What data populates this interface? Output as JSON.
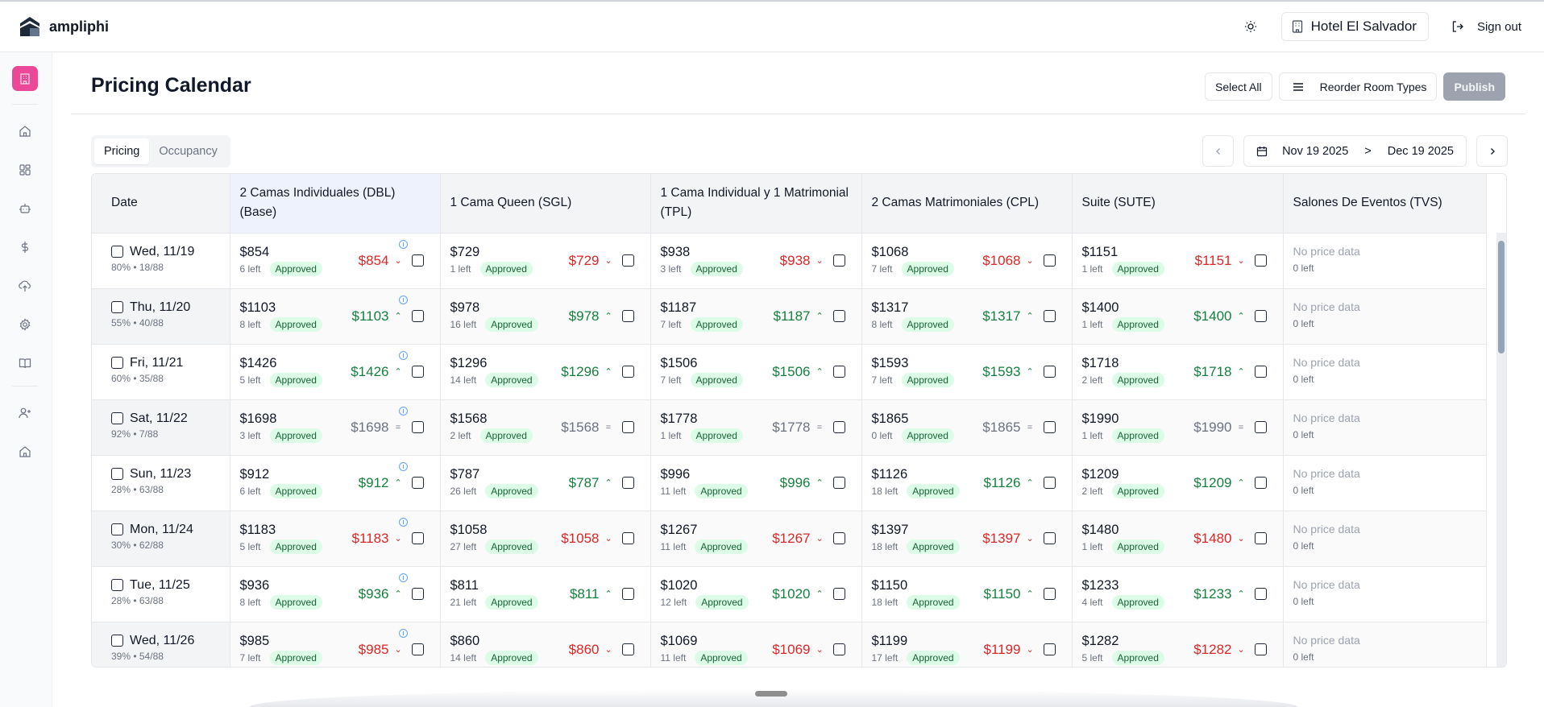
{
  "app": {
    "name": "ampliphi"
  },
  "header": {
    "hotel_label": "Hotel El Salvador",
    "signout_label": "Sign out",
    "theme_icon": "sun-icon"
  },
  "sidebar": {
    "items": [
      {
        "name": "hotel",
        "icon": "building-icon",
        "active": true
      },
      {
        "name": "home",
        "icon": "home-icon"
      },
      {
        "name": "dashboard",
        "icon": "grid-icon"
      },
      {
        "name": "bot",
        "icon": "bot-icon"
      },
      {
        "name": "pricing",
        "icon": "dollar-icon"
      },
      {
        "name": "upload",
        "icon": "cloud-upload-icon"
      },
      {
        "name": "settings",
        "icon": "gear-icon"
      },
      {
        "name": "docs",
        "icon": "book-icon"
      },
      {
        "name": "add-user",
        "icon": "user-plus-icon"
      },
      {
        "name": "home-2",
        "icon": "home-icon"
      }
    ]
  },
  "page": {
    "title": "Pricing Calendar",
    "select_all_label": "Select All",
    "reorder_label": "Reorder Room Types",
    "publish_label": "Publish",
    "tabs": [
      {
        "label": "Pricing",
        "active": true
      },
      {
        "label": "Occupancy",
        "active": false
      }
    ],
    "date_range": {
      "start": "Nov 19 2025",
      "separator": ">",
      "end": "Dec 19 2025"
    }
  },
  "table": {
    "date_header": "Date",
    "room_types": [
      "2 Camas Individuales (DBL) (Base)",
      "1 Cama Queen (SGL)",
      "1 Cama Individual y 1 Matrimonial (TPL)",
      "2 Camas Matrimoniales (CPL)",
      "Suite (SUTE)",
      "Salones De Eventos (TVS)"
    ],
    "status_label": "Approved",
    "no_data_label": "No price data",
    "no_data_left": "0 left",
    "rows": [
      {
        "date": "Wed, 11/19",
        "occ": "80% • 18/88",
        "trend": "down",
        "cells": [
          {
            "price": "$854",
            "left": "6 left",
            "rec": "$854"
          },
          {
            "price": "$729",
            "left": "1 left",
            "rec": "$729"
          },
          {
            "price": "$938",
            "left": "3 left",
            "rec": "$938"
          },
          {
            "price": "$1068",
            "left": "7 left",
            "rec": "$1068"
          },
          {
            "price": "$1151",
            "left": "1 left",
            "rec": "$1151"
          }
        ]
      },
      {
        "date": "Thu, 11/20",
        "occ": "55% • 40/88",
        "trend": "up",
        "cells": [
          {
            "price": "$1103",
            "left": "8 left",
            "rec": "$1103"
          },
          {
            "price": "$978",
            "left": "16 left",
            "rec": "$978"
          },
          {
            "price": "$1187",
            "left": "7 left",
            "rec": "$1187"
          },
          {
            "price": "$1317",
            "left": "8 left",
            "rec": "$1317"
          },
          {
            "price": "$1400",
            "left": "1 left",
            "rec": "$1400"
          }
        ]
      },
      {
        "date": "Fri, 11/21",
        "occ": "60% • 35/88",
        "trend": "up",
        "cells": [
          {
            "price": "$1426",
            "left": "5 left",
            "rec": "$1426"
          },
          {
            "price": "$1296",
            "left": "14 left",
            "rec": "$1296"
          },
          {
            "price": "$1506",
            "left": "7 left",
            "rec": "$1506"
          },
          {
            "price": "$1593",
            "left": "7 left",
            "rec": "$1593"
          },
          {
            "price": "$1718",
            "left": "2 left",
            "rec": "$1718"
          }
        ]
      },
      {
        "date": "Sat, 11/22",
        "occ": "92% • 7/88",
        "trend": "flat",
        "cells": [
          {
            "price": "$1698",
            "left": "3 left",
            "rec": "$1698"
          },
          {
            "price": "$1568",
            "left": "2 left",
            "rec": "$1568"
          },
          {
            "price": "$1778",
            "left": "1 left",
            "rec": "$1778"
          },
          {
            "price": "$1865",
            "left": "0 left",
            "rec": "$1865"
          },
          {
            "price": "$1990",
            "left": "1 left",
            "rec": "$1990"
          }
        ]
      },
      {
        "date": "Sun, 11/23",
        "occ": "28% • 63/88",
        "trend": "up",
        "cells": [
          {
            "price": "$912",
            "left": "6 left",
            "rec": "$912"
          },
          {
            "price": "$787",
            "left": "26 left",
            "rec": "$787"
          },
          {
            "price": "$996",
            "left": "11 left",
            "rec": "$996"
          },
          {
            "price": "$1126",
            "left": "18 left",
            "rec": "$1126"
          },
          {
            "price": "$1209",
            "left": "2 left",
            "rec": "$1209"
          }
        ]
      },
      {
        "date": "Mon, 11/24",
        "occ": "30% • 62/88",
        "trend": "down",
        "cells": [
          {
            "price": "$1183",
            "left": "5 left",
            "rec": "$1183"
          },
          {
            "price": "$1058",
            "left": "27 left",
            "rec": "$1058"
          },
          {
            "price": "$1267",
            "left": "11 left",
            "rec": "$1267"
          },
          {
            "price": "$1397",
            "left": "18 left",
            "rec": "$1397"
          },
          {
            "price": "$1480",
            "left": "1 left",
            "rec": "$1480"
          }
        ]
      },
      {
        "date": "Tue, 11/25",
        "occ": "28% • 63/88",
        "trend": "up",
        "cells": [
          {
            "price": "$936",
            "left": "8 left",
            "rec": "$936"
          },
          {
            "price": "$811",
            "left": "21 left",
            "rec": "$811"
          },
          {
            "price": "$1020",
            "left": "12 left",
            "rec": "$1020"
          },
          {
            "price": "$1150",
            "left": "18 left",
            "rec": "$1150"
          },
          {
            "price": "$1233",
            "left": "4 left",
            "rec": "$1233"
          }
        ]
      },
      {
        "date": "Wed, 11/26",
        "occ": "39% • 54/88",
        "trend": "down",
        "cells": [
          {
            "price": "$985",
            "left": "7 left",
            "rec": "$985"
          },
          {
            "price": "$860",
            "left": "14 left",
            "rec": "$860"
          },
          {
            "price": "$1069",
            "left": "11 left",
            "rec": "$1069"
          },
          {
            "price": "$1199",
            "left": "17 left",
            "rec": "$1199"
          },
          {
            "price": "$1282",
            "left": "5 left",
            "rec": "$1282"
          }
        ]
      }
    ]
  },
  "colors": {
    "accent": "#ec4899",
    "down": "#dc2626",
    "up": "#15803d",
    "flat": "#6b7280",
    "badge_bg": "#dcfce7",
    "badge_text": "#166534",
    "base_header": "#eef2fc"
  }
}
